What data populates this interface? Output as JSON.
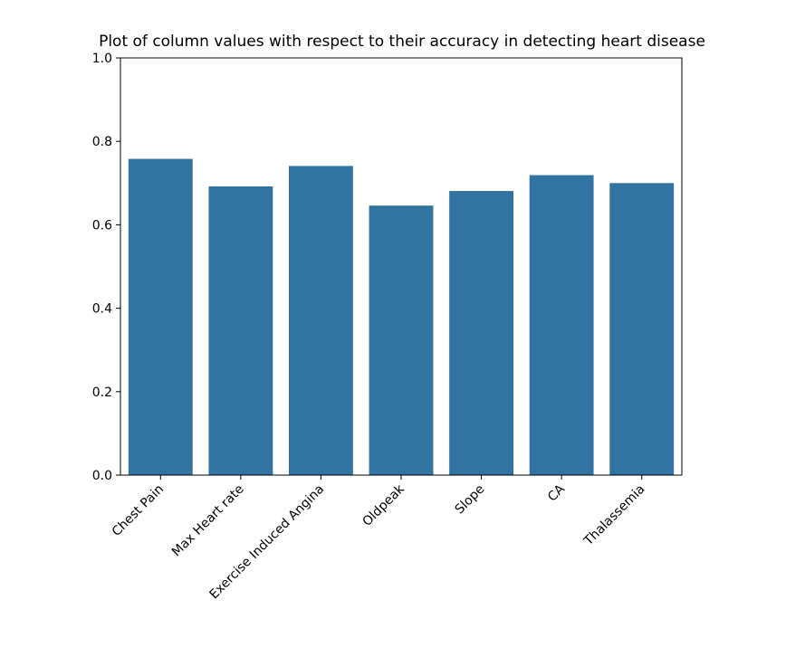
{
  "chart_data": {
    "type": "bar",
    "title": "Plot of column values with respect to their accuracy in detecting heart disease",
    "xlabel": "",
    "ylabel": "",
    "categories": [
      "Chest Pain",
      "Max Heart rate",
      "Exercise Induced Angina",
      "Oldpeak",
      "Slope",
      "CA",
      "Thalassemia"
    ],
    "values": [
      0.758,
      0.692,
      0.741,
      0.646,
      0.681,
      0.719,
      0.7
    ],
    "ylim": [
      0.0,
      1.0
    ],
    "yticks": [
      "0.0",
      "0.2",
      "0.4",
      "0.6",
      "0.8",
      "1.0"
    ],
    "grid": false,
    "bar_color": "#3274a1",
    "x_tick_rotation": "45 degrees"
  }
}
